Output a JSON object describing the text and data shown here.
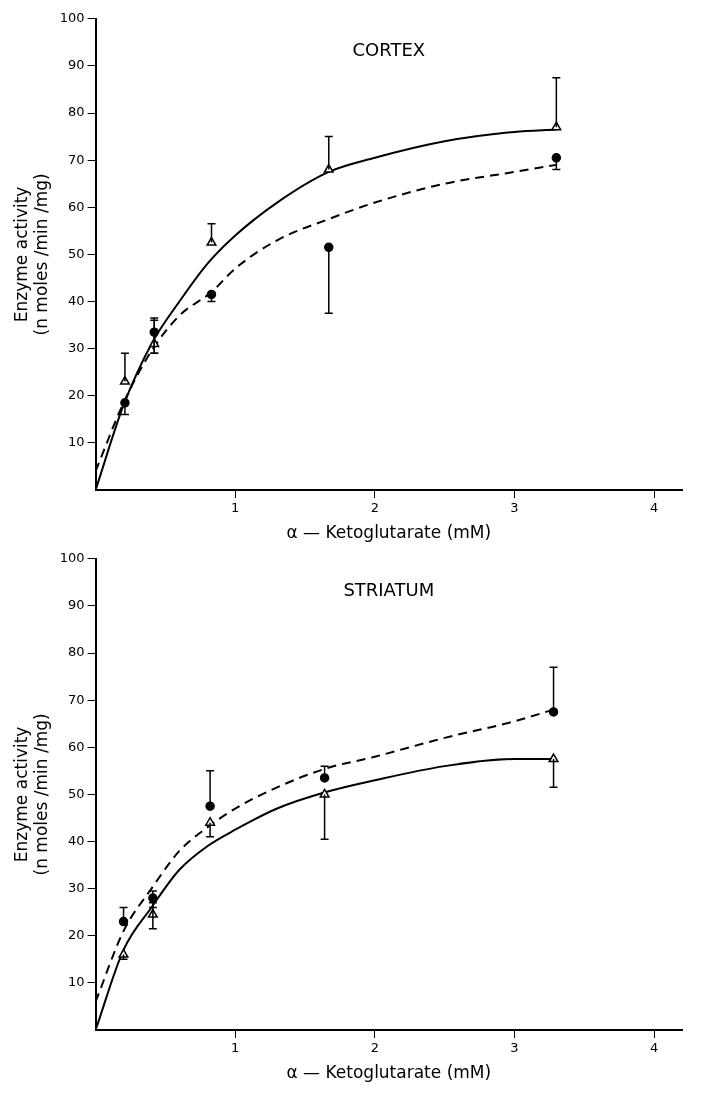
{
  "chart_data": [
    {
      "type": "scatter",
      "title": "CORTEX",
      "xlabel": "α — Ketoglutarate (mM)",
      "ylabel": "Enzyme activity\n(n moles /min /mg)",
      "xlim": [
        0,
        4.2
      ],
      "xticks": [
        1,
        2,
        3,
        4
      ],
      "ylim": [
        0,
        100
      ],
      "yticks": [
        10,
        20,
        30,
        40,
        50,
        60,
        70,
        80,
        90,
        100
      ],
      "grid": false,
      "legend": false,
      "series": [
        {
          "type": "scatter",
          "marker": "triangle",
          "color": "#000000",
          "x": [
            0.21,
            0.42,
            0.83,
            1.67,
            3.3
          ],
          "values": [
            23,
            31,
            52.5,
            68,
            77
          ],
          "errors": [
            [
              23,
              29
            ],
            [
              29,
              36
            ],
            [
              52.5,
              56.5
            ],
            [
              68,
              75
            ],
            [
              77,
              87.5
            ]
          ]
        },
        {
          "type": "scatter",
          "marker": "circle",
          "color": "#000000",
          "x": [
            0.21,
            0.42,
            0.83,
            1.67,
            3.3
          ],
          "values": [
            18.5,
            33.5,
            41.5,
            51.5,
            70.5
          ],
          "errors": [
            [
              16,
              18.5
            ],
            [
              29,
              36.5
            ],
            [
              40,
              41.5
            ],
            [
              37.5,
              51.5
            ],
            [
              68,
              70.5
            ]
          ]
        },
        {
          "type": "line",
          "line_style": "solid",
          "color": "#000000",
          "x": [
            0,
            0.2,
            0.4,
            0.6,
            0.8,
            1.0,
            1.3,
            1.67,
            2.0,
            2.5,
            3.0,
            3.3
          ],
          "values": [
            0,
            18,
            31,
            40,
            48,
            54,
            61,
            67.5,
            70.5,
            74,
            76,
            76.5
          ]
        },
        {
          "type": "line",
          "line_style": "dashed",
          "color": "#000000",
          "x": [
            0,
            0.2,
            0.4,
            0.6,
            0.83,
            1.0,
            1.3,
            1.67,
            2.0,
            2.5,
            3.0,
            3.3
          ],
          "values": [
            4,
            18.5,
            29.5,
            37,
            42,
            47,
            53,
            57.5,
            61,
            65,
            67.5,
            69
          ]
        }
      ]
    },
    {
      "type": "scatter",
      "title": "STRIATUM",
      "xlabel": "α — Ketoglutarate (mM)",
      "ylabel": "Enzyme activity\n(n moles /min /mg)",
      "xlim": [
        0,
        4.2
      ],
      "xticks": [
        1,
        2,
        3,
        4
      ],
      "ylim": [
        0,
        100
      ],
      "yticks": [
        10,
        20,
        30,
        40,
        50,
        60,
        70,
        80,
        90,
        100
      ],
      "grid": false,
      "legend": false,
      "series": [
        {
          "type": "scatter",
          "marker": "circle",
          "color": "#000000",
          "x": [
            0.2,
            0.41,
            0.82,
            1.64,
            3.28
          ],
          "values": [
            23,
            28,
            47.5,
            53.5,
            67.5
          ],
          "errors": [
            [
              23,
              26
            ],
            [
              26,
              29.5
            ],
            [
              47.5,
              55
            ],
            [
              53.5,
              56
            ],
            [
              67.5,
              77
            ]
          ]
        },
        {
          "type": "scatter",
          "marker": "triangle",
          "color": "#000000",
          "x": [
            0.2,
            0.41,
            0.82,
            1.64,
            3.28
          ],
          "values": [
            16,
            24.5,
            44,
            50,
            57.5
          ],
          "errors": [
            [
              15,
              16
            ],
            [
              21.5,
              27
            ],
            [
              41,
              44
            ],
            [
              40.5,
              50
            ],
            [
              51.5,
              57.5
            ]
          ]
        },
        {
          "type": "line",
          "line_style": "solid",
          "color": "#000000",
          "x": [
            0,
            0.2,
            0.4,
            0.6,
            0.8,
            1.0,
            1.3,
            1.65,
            2.0,
            2.5,
            3.0,
            3.28
          ],
          "values": [
            0,
            17,
            26,
            34,
            39,
            42.5,
            47,
            50.5,
            53,
            56,
            57.5,
            57.5
          ]
        },
        {
          "type": "line",
          "line_style": "dashed",
          "color": "#000000",
          "x": [
            0,
            0.2,
            0.4,
            0.6,
            0.8,
            1.0,
            1.3,
            1.65,
            2.0,
            2.5,
            3.0,
            3.28
          ],
          "values": [
            6,
            21,
            30,
            38,
            43,
            47,
            51.5,
            55.5,
            58,
            62,
            65.5,
            68
          ]
        }
      ]
    }
  ]
}
